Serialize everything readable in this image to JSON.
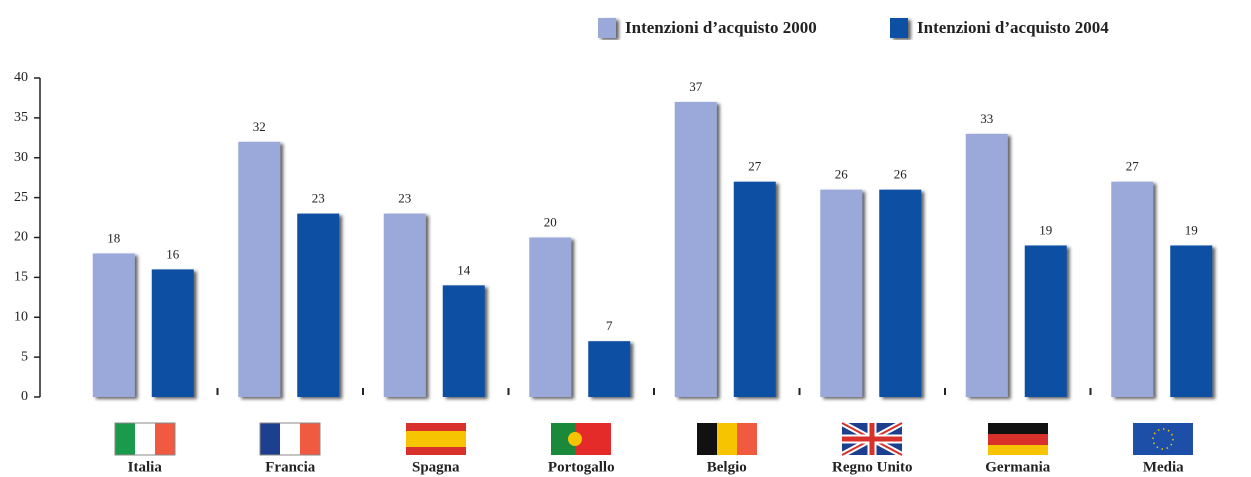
{
  "chart_data": {
    "type": "bar",
    "categories": [
      "Italia",
      "Francia",
      "Spagna",
      "Portogallo",
      "Belgio",
      "Regno Unito",
      "Germania",
      "Media"
    ],
    "series": [
      {
        "name": "Intenzioni d’acquisto 2000",
        "color": "#9aa9d9",
        "values": [
          18,
          32,
          23,
          20,
          37,
          26,
          33,
          27
        ]
      },
      {
        "name": "Intenzioni d’acquisto 2004",
        "color": "#0d50a2",
        "values": [
          16,
          23,
          14,
          7,
          27,
          26,
          19,
          19
        ]
      }
    ],
    "ylim": [
      0,
      40
    ],
    "yticks": [
      0,
      5,
      10,
      15,
      20,
      25,
      30,
      35,
      40
    ]
  }
}
